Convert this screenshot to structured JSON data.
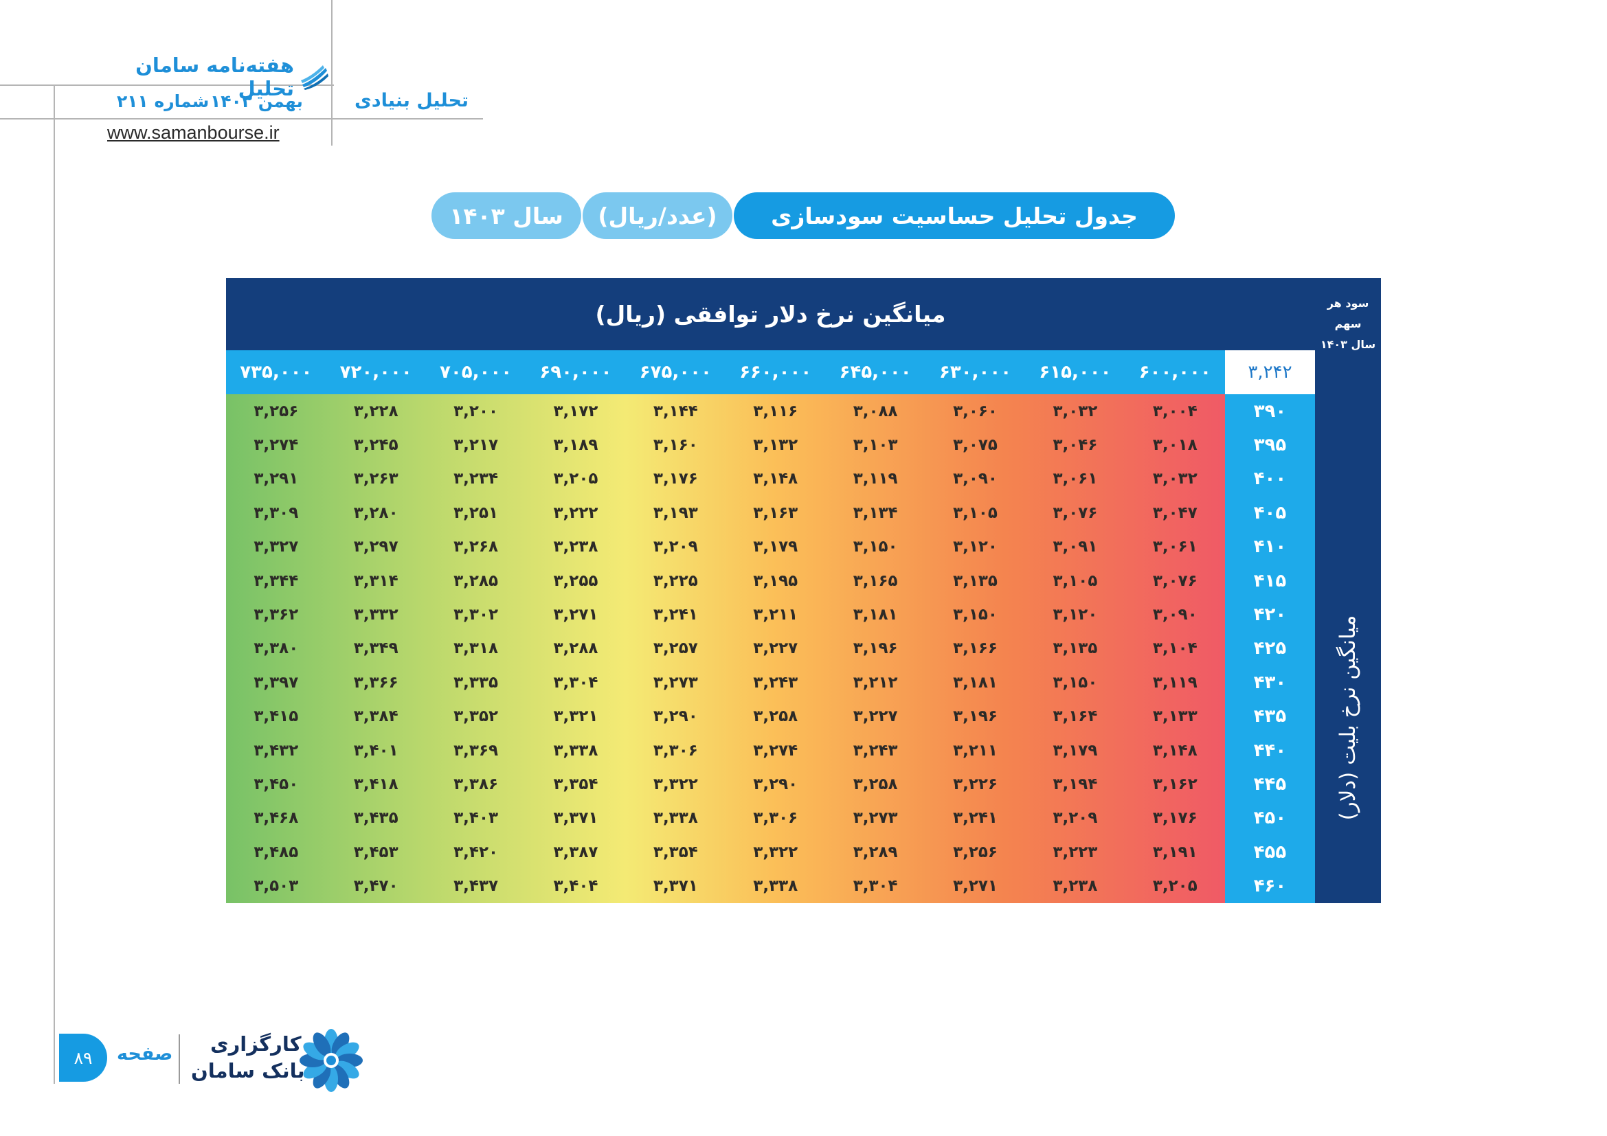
{
  "header": {
    "magazine_title": "هفته‌نامه سامان تحلیل",
    "issue_month": "بهمن ۱۴۰۳",
    "issue_number": "شماره ۲۱۱",
    "section": "تحلیل بنیادی",
    "website": "www.samanbourse.ir",
    "brand_icon": "stacked-blue-papers-icon"
  },
  "title_bar": {
    "main": "جدول تحلیل حساسیت سودسازی",
    "unit": "(عدد/ریال)",
    "year": "سال ۱۴۰۳"
  },
  "table": {
    "column_axis_title": "میانگین نرخ دلار توافقی (ریال)",
    "row_axis_title": "میانگین نرخ بلیت (دلار)",
    "corner_label_line1": "سود هر سهم",
    "corner_label_line2": "سال ۱۴۰۳",
    "corner_value": "۳,۲۴۲",
    "columns": [
      "۶۰۰,۰۰۰",
      "۶۱۵,۰۰۰",
      "۶۳۰,۰۰۰",
      "۶۴۵,۰۰۰",
      "۶۶۰,۰۰۰",
      "۶۷۵,۰۰۰",
      "۶۹۰,۰۰۰",
      "۷۰۵,۰۰۰",
      "۷۲۰,۰۰۰",
      "۷۳۵,۰۰۰"
    ],
    "rows": [
      {
        "label": "۳۹۰",
        "values": [
          "۳,۰۰۴",
          "۳,۰۳۲",
          "۳,۰۶۰",
          "۳,۰۸۸",
          "۳,۱۱۶",
          "۳,۱۴۴",
          "۳,۱۷۲",
          "۳,۲۰۰",
          "۳,۲۲۸",
          "۳,۲۵۶"
        ]
      },
      {
        "label": "۳۹۵",
        "values": [
          "۳,۰۱۸",
          "۳,۰۴۶",
          "۳,۰۷۵",
          "۳,۱۰۳",
          "۳,۱۳۲",
          "۳,۱۶۰",
          "۳,۱۸۹",
          "۳,۲۱۷",
          "۳,۲۴۵",
          "۳,۲۷۴"
        ]
      },
      {
        "label": "۴۰۰",
        "values": [
          "۳,۰۳۲",
          "۳,۰۶۱",
          "۳,۰۹۰",
          "۳,۱۱۹",
          "۳,۱۴۸",
          "۳,۱۷۶",
          "۳,۲۰۵",
          "۳,۲۳۴",
          "۳,۲۶۳",
          "۳,۲۹۱"
        ]
      },
      {
        "label": "۴۰۵",
        "values": [
          "۳,۰۴۷",
          "۳,۰۷۶",
          "۳,۱۰۵",
          "۳,۱۳۴",
          "۳,۱۶۳",
          "۳,۱۹۳",
          "۳,۲۲۲",
          "۳,۲۵۱",
          "۳,۲۸۰",
          "۳,۳۰۹"
        ]
      },
      {
        "label": "۴۱۰",
        "values": [
          "۳,۰۶۱",
          "۳,۰۹۱",
          "۳,۱۲۰",
          "۳,۱۵۰",
          "۳,۱۷۹",
          "۳,۲۰۹",
          "۳,۲۳۸",
          "۳,۲۶۸",
          "۳,۲۹۷",
          "۳,۳۲۷"
        ]
      },
      {
        "label": "۴۱۵",
        "values": [
          "۳,۰۷۶",
          "۳,۱۰۵",
          "۳,۱۳۵",
          "۳,۱۶۵",
          "۳,۱۹۵",
          "۳,۲۲۵",
          "۳,۲۵۵",
          "۳,۲۸۵",
          "۳,۳۱۴",
          "۳,۳۴۴"
        ]
      },
      {
        "label": "۴۲۰",
        "values": [
          "۳,۰۹۰",
          "۳,۱۲۰",
          "۳,۱۵۰",
          "۳,۱۸۱",
          "۳,۲۱۱",
          "۳,۲۴۱",
          "۳,۲۷۱",
          "۳,۳۰۲",
          "۳,۳۳۲",
          "۳,۳۶۲"
        ]
      },
      {
        "label": "۴۲۵",
        "values": [
          "۳,۱۰۴",
          "۳,۱۳۵",
          "۳,۱۶۶",
          "۳,۱۹۶",
          "۳,۲۲۷",
          "۳,۲۵۷",
          "۳,۲۸۸",
          "۳,۳۱۸",
          "۳,۳۴۹",
          "۳,۳۸۰"
        ]
      },
      {
        "label": "۴۳۰",
        "values": [
          "۳,۱۱۹",
          "۳,۱۵۰",
          "۳,۱۸۱",
          "۳,۲۱۲",
          "۳,۲۴۳",
          "۳,۲۷۳",
          "۳,۳۰۴",
          "۳,۳۳۵",
          "۳,۳۶۶",
          "۳,۳۹۷"
        ]
      },
      {
        "label": "۴۳۵",
        "values": [
          "۳,۱۳۳",
          "۳,۱۶۴",
          "۳,۱۹۶",
          "۳,۲۲۷",
          "۳,۲۵۸",
          "۳,۲۹۰",
          "۳,۳۲۱",
          "۳,۳۵۲",
          "۳,۳۸۴",
          "۳,۴۱۵"
        ]
      },
      {
        "label": "۴۴۰",
        "values": [
          "۳,۱۴۸",
          "۳,۱۷۹",
          "۳,۲۱۱",
          "۳,۲۴۳",
          "۳,۲۷۴",
          "۳,۳۰۶",
          "۳,۳۳۸",
          "۳,۳۶۹",
          "۳,۴۰۱",
          "۳,۴۳۲"
        ]
      },
      {
        "label": "۴۴۵",
        "values": [
          "۳,۱۶۲",
          "۳,۱۹۴",
          "۳,۲۲۶",
          "۳,۲۵۸",
          "۳,۲۹۰",
          "۳,۳۲۲",
          "۳,۳۵۴",
          "۳,۳۸۶",
          "۳,۴۱۸",
          "۳,۴۵۰"
        ]
      },
      {
        "label": "۴۵۰",
        "values": [
          "۳,۱۷۶",
          "۳,۲۰۹",
          "۳,۲۴۱",
          "۳,۲۷۳",
          "۳,۳۰۶",
          "۳,۳۳۸",
          "۳,۳۷۱",
          "۳,۴۰۳",
          "۳,۴۳۵",
          "۳,۴۶۸"
        ]
      },
      {
        "label": "۴۵۵",
        "values": [
          "۳,۱۹۱",
          "۳,۲۲۳",
          "۳,۲۵۶",
          "۳,۲۸۹",
          "۳,۳۲۲",
          "۳,۳۵۴",
          "۳,۳۸۷",
          "۳,۴۲۰",
          "۳,۴۵۳",
          "۳,۴۸۵"
        ]
      },
      {
        "label": "۴۶۰",
        "values": [
          "۳,۲۰۵",
          "۳,۲۳۸",
          "۳,۲۷۱",
          "۳,۳۰۴",
          "۳,۳۳۸",
          "۳,۳۷۱",
          "۳,۴۰۴",
          "۳,۴۳۷",
          "۳,۴۷۰",
          "۳,۵۰۳"
        ]
      }
    ],
    "colors": {
      "header_bg": "#143e7c",
      "subheader_bg": "#1eaaea",
      "low": "#f05a66",
      "high": "#78c267"
    }
  },
  "footer": {
    "page_number": "۸۹",
    "page_word": "صفحه",
    "broker_line1": "کارگزاری",
    "broker_line2": "بانک سامان",
    "broker_logo": "saman-flower-logo-icon"
  }
}
